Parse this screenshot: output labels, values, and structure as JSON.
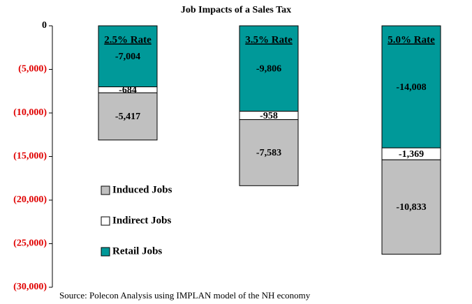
{
  "chart_data": {
    "type": "stacked_bar",
    "title": "Job Impacts of a Sales Tax",
    "categories": [
      "2.5% Rate",
      "3.5% Rate",
      "5.0% Rate"
    ],
    "series": [
      {
        "name": "Retail Jobs",
        "color": "#009999",
        "values": [
          -7004,
          -9806,
          -14008
        ],
        "value_labels": [
          "-7,004",
          "-9,806",
          "-14,008"
        ]
      },
      {
        "name": "Indirect Jobs",
        "color": "#ffffff",
        "values": [
          -684,
          -958,
          -1369
        ],
        "value_labels": [
          "-684",
          "-958",
          "-1,369"
        ]
      },
      {
        "name": "Induced Jobs",
        "color": "#c0c0c0",
        "values": [
          -5417,
          -7583,
          -10833
        ],
        "value_labels": [
          "-5,417",
          "-7,583",
          "-10,833"
        ]
      }
    ],
    "ylim": [
      -30000,
      0
    ],
    "yticks": [
      0,
      {
        "value": -5000,
        "label": "(5,000)"
      },
      {
        "value": -10000,
        "label": "(10,000)"
      },
      {
        "value": -15000,
        "label": "(15,000)"
      },
      {
        "value": -20000,
        "label": "(20,000)"
      },
      {
        "value": -25000,
        "label": "(25,000)"
      },
      {
        "value": -30000,
        "label": "(30,000)"
      }
    ],
    "legend": "left",
    "source": "Source: Polecon Analysis using IMPLAN model of the NH economy"
  }
}
